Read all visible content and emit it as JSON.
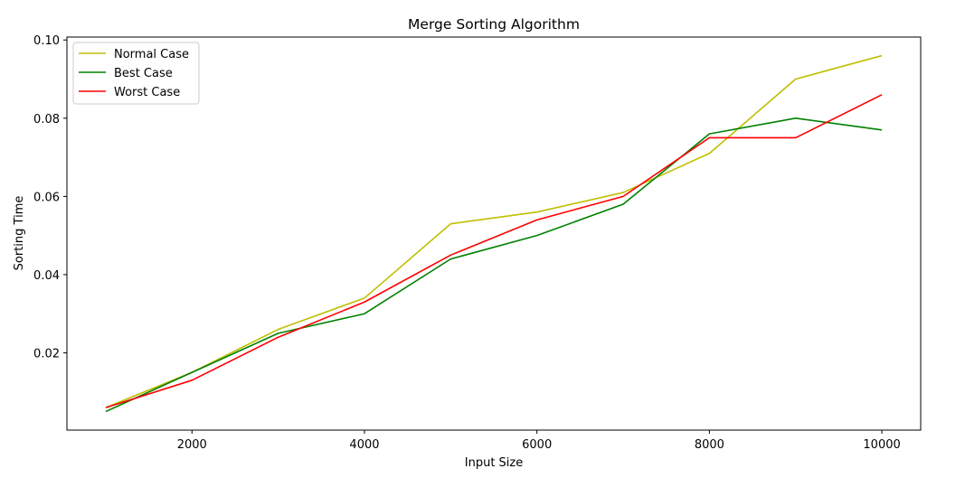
{
  "chart_data": {
    "type": "line",
    "title": "Merge Sorting Algorithm",
    "xlabel": "Input Size",
    "ylabel": "Sorting Time",
    "x": [
      1000,
      2000,
      3000,
      4000,
      5000,
      6000,
      7000,
      8000,
      9000,
      10000
    ],
    "xlim": [
      550,
      10450
    ],
    "ylim": [
      0.00025,
      0.10075
    ],
    "xticks": [
      2000,
      4000,
      6000,
      8000,
      10000
    ],
    "xtick_labels": [
      "2000",
      "4000",
      "6000",
      "8000",
      "10000"
    ],
    "yticks": [
      0.02,
      0.04,
      0.06,
      0.08,
      0.1
    ],
    "ytick_labels": [
      "0.02",
      "0.04",
      "0.06",
      "0.08",
      "0.10"
    ],
    "grid": false,
    "legend_position": "upper-left",
    "series": [
      {
        "name": "Normal Case",
        "color": "#bfbf00",
        "values": [
          0.006,
          0.015,
          0.026,
          0.034,
          0.053,
          0.056,
          0.061,
          0.071,
          0.09,
          0.096
        ]
      },
      {
        "name": "Best Case",
        "color": "#008000",
        "values": [
          0.005,
          0.015,
          0.025,
          0.03,
          0.044,
          0.05,
          0.058,
          0.076,
          0.08,
          0.077
        ]
      },
      {
        "name": "Worst Case",
        "color": "#ff0000",
        "values": [
          0.006,
          0.013,
          0.024,
          0.033,
          0.045,
          0.054,
          0.06,
          0.075,
          0.075,
          0.086
        ]
      }
    ]
  }
}
